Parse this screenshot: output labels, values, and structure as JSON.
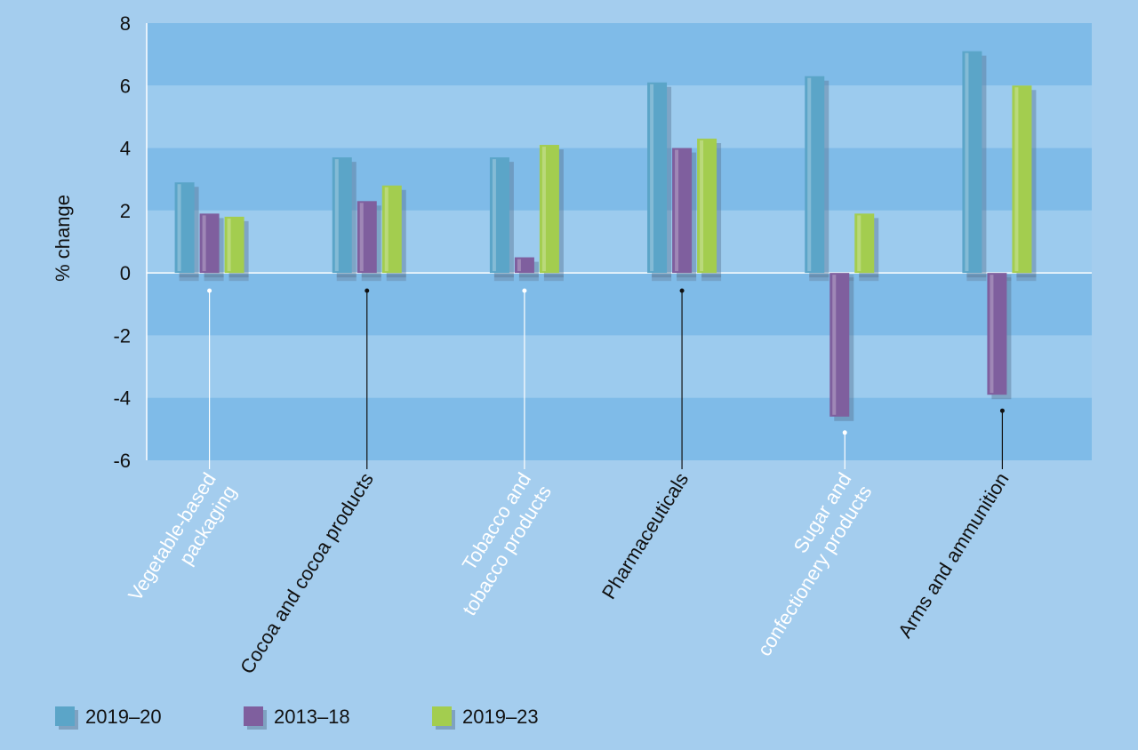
{
  "chart_data": {
    "type": "bar",
    "ylabel": "% change",
    "ylim": [
      -6,
      8
    ],
    "yticks": [
      8,
      6,
      4,
      2,
      0,
      -2,
      -4,
      -6
    ],
    "categories": [
      [
        "Vegetable-based",
        "packaging"
      ],
      [
        "Cocoa and cocoa products"
      ],
      [
        "Tobacco and",
        "tobacco products"
      ],
      [
        "Pharmaceuticals"
      ],
      [
        "Sugar and",
        "confectionery products"
      ],
      [
        "Arms and ammunition"
      ]
    ],
    "category_label_colors": [
      "#ffffff",
      "#111111",
      "#ffffff",
      "#111111",
      "#ffffff",
      "#111111"
    ],
    "series": [
      {
        "name": "2019–20",
        "color": "#5ba5c8",
        "values": [
          2.9,
          3.7,
          3.7,
          6.1,
          6.3,
          7.1
        ]
      },
      {
        "name": "2013–18",
        "color": "#7f5f9e",
        "values": [
          1.9,
          2.3,
          0.5,
          4.0,
          -4.6,
          -3.9
        ]
      },
      {
        "name": "2019–23",
        "color": "#a3cd4f",
        "values": [
          1.8,
          2.8,
          4.1,
          4.3,
          1.9,
          6.0
        ]
      }
    ],
    "grid": "alternating horizontal bands",
    "legend_position": "bottom-left"
  }
}
